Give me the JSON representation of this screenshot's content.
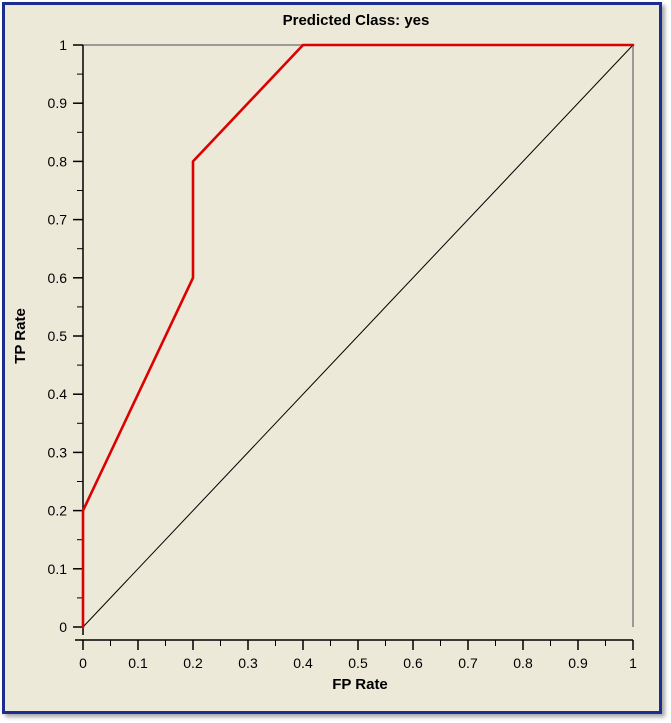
{
  "chart_data": {
    "type": "line",
    "title": "Predicted Class: yes",
    "xlabel": "FP Rate",
    "ylabel": "TP Rate",
    "xlim": [
      0,
      1
    ],
    "ylim": [
      0,
      1
    ],
    "x_ticks": [
      "0",
      "0.1",
      "0.2",
      "0.3",
      "0.4",
      "0.5",
      "0.6",
      "0.7",
      "0.8",
      "0.9",
      "1"
    ],
    "y_ticks": [
      "0",
      "0.1",
      "0.2",
      "0.3",
      "0.4",
      "0.5",
      "0.6",
      "0.7",
      "0.8",
      "0.9",
      "1"
    ],
    "grid": false,
    "series": [
      {
        "color": "#dd0000",
        "x": [
          0,
          0,
          0.2,
          0.2,
          0.4,
          1
        ],
        "y": [
          0,
          0.2,
          0.6,
          0.8,
          1,
          1
        ]
      },
      {
        "color": "#000000",
        "x": [
          0,
          1
        ],
        "y": [
          0,
          1
        ]
      }
    ]
  }
}
